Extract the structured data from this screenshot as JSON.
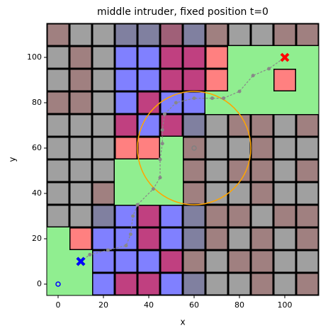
{
  "chart_data": {
    "type": "grid-map",
    "title": "middle intruder, fixed position t=0",
    "xlabel": "x",
    "ylabel": "y",
    "xlim": [
      -5,
      115
    ],
    "ylim": [
      -5,
      115
    ],
    "xticks": [
      0,
      20,
      40,
      60,
      80,
      100
    ],
    "yticks": [
      0,
      20,
      40,
      60,
      80,
      100
    ],
    "palette": {
      "g": "#a0a0a0",
      "r": "#a08080",
      "s": "#8080a0",
      "v": "#a06078",
      "b": "#8080ff",
      "m": "#c04080",
      "p": "#ff8080",
      "G": "#90ee90"
    },
    "cells": [
      "rggssvsrggrr",
      "grgbbmmpGGGG",
      "grgbbmmpGGpG",
      "rrgbmbbGGGGG",
      "gggmbmsgrrgr",
      "gggppGrggrgg",
      "gggGGGrgrrgr",
      "ggrGGGrggrgg",
      "ggsbmbsrrgrr",
      "Gpbbmbsrgrgr",
      "GGbbbmrgrrgg",
      "GGbmmbsggrgr"
    ],
    "path": {
      "color": "#888888",
      "x": [
        10,
        14,
        22,
        30,
        32,
        33,
        35,
        42,
        45,
        45,
        46,
        46,
        47,
        52,
        60,
        68,
        73,
        80,
        86,
        93,
        100
      ],
      "y": [
        10,
        13,
        15,
        17,
        22,
        30,
        35,
        42,
        47,
        55,
        62,
        68,
        75,
        80,
        82,
        82,
        82,
        85,
        92,
        95,
        100
      ]
    },
    "circle": {
      "x": 60,
      "y": 60,
      "radius": 25,
      "color": "#ffa500"
    },
    "markers": [
      {
        "x": 60,
        "y": 60,
        "shape": "o",
        "color": "#808080"
      },
      {
        "x": 0,
        "y": 0,
        "shape": "o",
        "color": "#0000ff"
      },
      {
        "x": 10,
        "y": 10,
        "shape": "X",
        "color": "#008000"
      },
      {
        "x": 10,
        "y": 10,
        "shape": "X",
        "color": "#0000ff"
      },
      {
        "x": 100,
        "y": 100,
        "shape": "X",
        "color": "#ff0000"
      }
    ]
  }
}
